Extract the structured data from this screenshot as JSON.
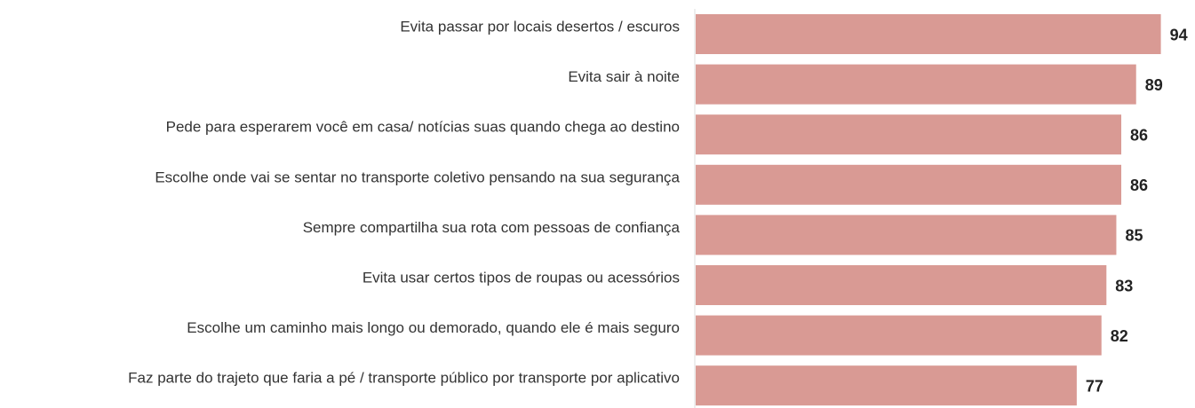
{
  "chart_data": {
    "type": "bar",
    "orientation": "horizontal",
    "categories": [
      "Evita passar por locais desertos / escuros",
      "Evita sair à noite",
      "Pede para esperarem você em casa/ notícias suas quando chega ao destino",
      "Escolhe onde vai se sentar no transporte coletivo pensando na sua segurança",
      "Sempre compartilha sua rota com pessoas de confiança",
      "Evita usar certos tipos de roupas ou acessórios",
      "Escolhe um caminho mais longo ou demorado, quando ele é mais seguro",
      "Faz parte do trajeto que faria a pé / transporte público por transporte por aplicativo"
    ],
    "values": [
      94,
      89,
      86,
      86,
      85,
      83,
      82,
      77
    ],
    "color": "#d99a94",
    "xlim": [
      0,
      100
    ]
  }
}
